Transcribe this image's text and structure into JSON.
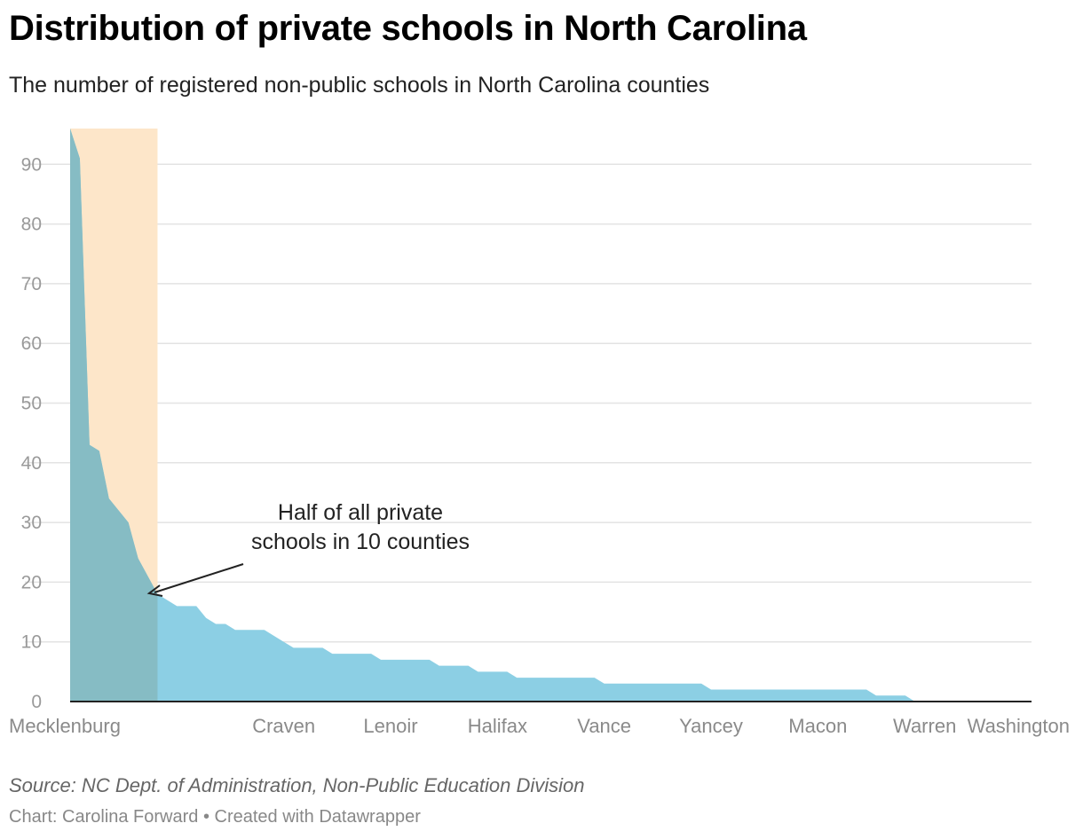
{
  "chart_data": {
    "type": "area",
    "title": "Distribution of private schools in North Carolina",
    "subtitle": "The number of registered non-public schools in North Carolina counties",
    "xlabel": "",
    "ylabel": "",
    "ylim": [
      0,
      96
    ],
    "y_ticks": [
      0,
      10,
      20,
      30,
      40,
      50,
      60,
      70,
      80,
      90
    ],
    "x_tick_labels": [
      {
        "index": 0,
        "label": "Mecklenburg"
      },
      {
        "index": 22,
        "label": "Craven"
      },
      {
        "index": 33,
        "label": "Lenoir"
      },
      {
        "index": 44,
        "label": "Halifax"
      },
      {
        "index": 55,
        "label": "Vance"
      },
      {
        "index": 66,
        "label": "Yancey"
      },
      {
        "index": 77,
        "label": "Macon"
      },
      {
        "index": 88,
        "label": "Warren"
      },
      {
        "index": 99,
        "label": "Washington"
      }
    ],
    "values": [
      96,
      91,
      43,
      42,
      34,
      32,
      30,
      24,
      21,
      18,
      17,
      16,
      16,
      16,
      14,
      13,
      13,
      12,
      12,
      12,
      12,
      11,
      10,
      9,
      9,
      9,
      9,
      8,
      8,
      8,
      8,
      8,
      7,
      7,
      7,
      7,
      7,
      7,
      6,
      6,
      6,
      6,
      5,
      5,
      5,
      5,
      4,
      4,
      4,
      4,
      4,
      4,
      4,
      4,
      4,
      3,
      3,
      3,
      3,
      3,
      3,
      3,
      3,
      3,
      3,
      3,
      2,
      2,
      2,
      2,
      2,
      2,
      2,
      2,
      2,
      2,
      2,
      2,
      2,
      2,
      2,
      2,
      2,
      1,
      1,
      1,
      1,
      0,
      0,
      0,
      0,
      0,
      0,
      0,
      0,
      0,
      0,
      0,
      0,
      0
    ],
    "highlight_range": [
      0,
      9
    ],
    "annotation": {
      "line1": "Half of all private",
      "line2": "schools in 10 counties"
    },
    "colors": {
      "area": "#8ccfe4",
      "highlight": "#fde6c9",
      "overlap": "#86bcc4",
      "grid": "#e3e3e3",
      "axis": "#222222"
    }
  },
  "footer": {
    "source": "Source: NC Dept. of Administration, Non-Public Education Division",
    "credit": "Chart: Carolina Forward • Created with Datawrapper"
  }
}
